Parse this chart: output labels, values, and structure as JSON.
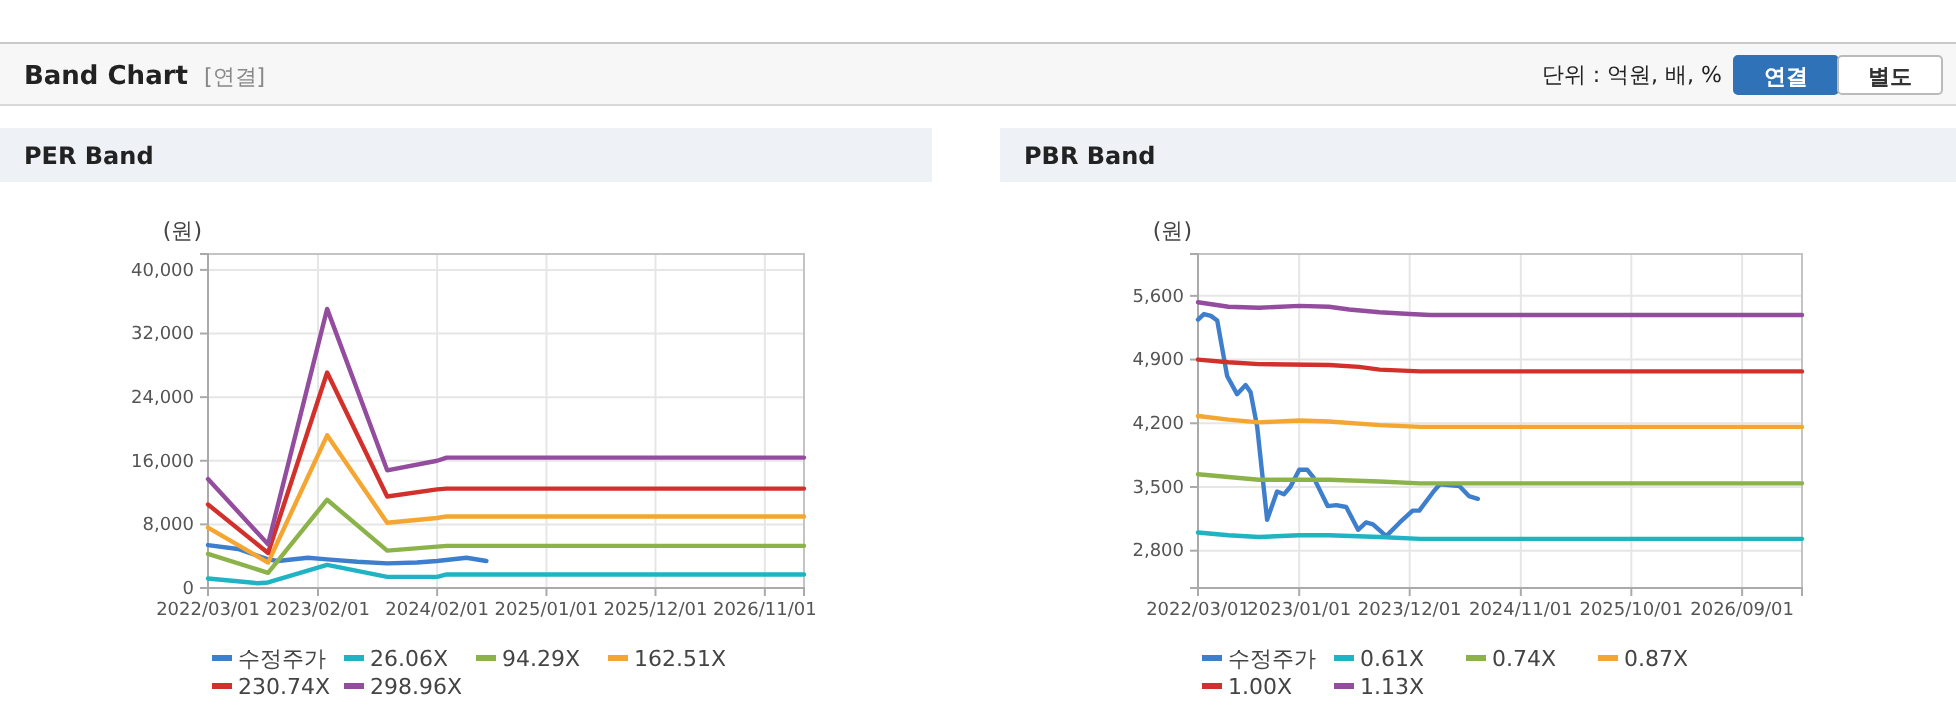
{
  "chart_data": [
    {
      "type": "other",
      "title": "Band Chart",
      "annotations": [
        "[연결]",
        "단위 : 억원, 배, %",
        "연결",
        "별도"
      ]
    },
    {
      "type": "line",
      "title": "PER Band",
      "ylabel": "(원)",
      "xlim": [
        "2022-03-01",
        "2027-03-01"
      ],
      "ylim": [
        0,
        42000
      ],
      "xticks": [
        {
          "value": "2022-03-01",
          "label": "2022/03/01"
        },
        {
          "value": "2023-02-01",
          "label": "2023/02/01"
        },
        {
          "value": "2024-02-01",
          "label": "2024/02/01"
        },
        {
          "value": "2025-01-01",
          "label": "2025/01/01"
        },
        {
          "value": "2025-12-01",
          "label": "2025/12/01"
        },
        {
          "value": "2026-11-01",
          "label": "2026/11/01"
        }
      ],
      "yticks": [
        {
          "value": 0,
          "label": "0"
        },
        {
          "value": 8000,
          "label": "8,000"
        },
        {
          "value": 16000,
          "label": "16,000"
        },
        {
          "value": 24000,
          "label": "24,000"
        },
        {
          "value": 32000,
          "label": "32,000"
        },
        {
          "value": 40000,
          "label": "40,000"
        }
      ],
      "grid": true,
      "legend": "bottom",
      "marker": "none",
      "line_style": "solid",
      "series": [
        {
          "name": "수정주가",
          "color": "#3d7fcc",
          "x": [
            "2022-03-01",
            "2022-06-01",
            "2022-09-01",
            "2022-10-01",
            "2023-01-01",
            "2023-03-01",
            "2023-06-01",
            "2023-09-01",
            "2023-12-01",
            "2024-02-01",
            "2024-05-01",
            "2024-07-01"
          ],
          "values": [
            5400,
            4900,
            3600,
            3400,
            3800,
            3600,
            3300,
            3100,
            3200,
            3400,
            3800,
            3400
          ]
        },
        {
          "name": "26.06X",
          "color": "#1fb3c4",
          "x": [
            "2022-03-01",
            "2022-08-01",
            "2022-09-01",
            "2023-03-01",
            "2023-09-01",
            "2024-02-01",
            "2024-03-01",
            "2027-03-01"
          ],
          "values": [
            1200,
            600,
            700,
            2900,
            1400,
            1400,
            1700,
            1700
          ]
        },
        {
          "name": "94.29X",
          "color": "#8cb34a",
          "x": [
            "2022-03-01",
            "2022-09-01",
            "2023-03-01",
            "2023-09-01",
            "2024-02-01",
            "2024-03-01",
            "2027-03-01"
          ],
          "values": [
            4300,
            1900,
            11100,
            4700,
            5200,
            5300,
            5300
          ]
        },
        {
          "name": "162.51X",
          "color": "#f5a630",
          "x": [
            "2022-03-01",
            "2022-09-01",
            "2023-03-01",
            "2023-09-01",
            "2024-02-01",
            "2024-03-01",
            "2027-03-01"
          ],
          "values": [
            7600,
            3200,
            19200,
            8200,
            8800,
            9000,
            9000
          ]
        },
        {
          "name": "230.74X",
          "color": "#d2302b",
          "x": [
            "2022-03-01",
            "2022-09-01",
            "2023-03-01",
            "2023-09-01",
            "2024-02-01",
            "2024-03-01",
            "2027-03-01"
          ],
          "values": [
            10500,
            4400,
            27100,
            11500,
            12400,
            12500,
            12500
          ]
        },
        {
          "name": "298.96X",
          "color": "#944c9e",
          "x": [
            "2022-03-01",
            "2022-09-01",
            "2023-03-01",
            "2023-09-01",
            "2024-02-01",
            "2024-03-01",
            "2027-03-01"
          ],
          "values": [
            13700,
            5500,
            35100,
            14800,
            16000,
            16400,
            16400
          ]
        }
      ]
    },
    {
      "type": "line",
      "title": "PBR Band",
      "ylabel": "(원)",
      "xlim": [
        "2022-03-01",
        "2027-03-01"
      ],
      "ylim": [
        2390,
        6060
      ],
      "xticks": [
        {
          "value": "2022-03-01",
          "label": "2022/03/01"
        },
        {
          "value": "2023-01-01",
          "label": "2023/01/01"
        },
        {
          "value": "2023-12-01",
          "label": "2023/12/01"
        },
        {
          "value": "2024-11-01",
          "label": "2024/11/01"
        },
        {
          "value": "2025-10-01",
          "label": "2025/10/01"
        },
        {
          "value": "2026-09-01",
          "label": "2026/09/01"
        }
      ],
      "yticks": [
        {
          "value": 2800,
          "label": "2,800"
        },
        {
          "value": 3500,
          "label": "3,500"
        },
        {
          "value": 4200,
          "label": "4,200"
        },
        {
          "value": 4900,
          "label": "4,900"
        },
        {
          "value": 5600,
          "label": "5,600"
        }
      ],
      "grid": true,
      "legend": "bottom",
      "marker": "none",
      "line_style": "solid",
      "series": [
        {
          "name": "수정주가",
          "color": "#3d7fcc",
          "x": [
            "2022-03-01",
            "2022-03-19",
            "2022-04-09",
            "2022-04-28",
            "2022-05-28",
            "2022-06-27",
            "2022-07-23",
            "2022-08-07",
            "2022-08-27",
            "2022-09-26",
            "2022-10-26",
            "2022-11-16",
            "2022-12-05",
            "2023-01-01",
            "2023-01-25",
            "2023-02-14",
            "2023-03-28",
            "2023-04-23",
            "2023-05-23",
            "2023-06-28",
            "2023-07-22",
            "2023-08-12",
            "2023-09-21",
            "2023-11-01",
            "2023-12-10",
            "2023-12-30",
            "2024-02-09",
            "2024-03-01",
            "2024-04-29",
            "2024-05-28",
            "2024-06-24"
          ],
          "values": [
            5340,
            5400,
            5380,
            5330,
            4720,
            4520,
            4620,
            4540,
            4160,
            3140,
            3450,
            3420,
            3500,
            3690,
            3690,
            3600,
            3290,
            3300,
            3280,
            3030,
            3110,
            3090,
            2960,
            3110,
            3240,
            3240,
            3440,
            3530,
            3510,
            3400,
            3370
          ]
        },
        {
          "name": "0.61X",
          "color": "#1fb3c4",
          "x": [
            "2022-03-01",
            "2022-06-01",
            "2022-09-01",
            "2023-01-01",
            "2023-04-01",
            "2023-09-01",
            "2024-01-01",
            "2027-03-01"
          ],
          "values": [
            3000,
            2970,
            2950,
            2970,
            2970,
            2950,
            2930,
            2930
          ]
        },
        {
          "name": "0.74X",
          "color": "#8cb34a",
          "x": [
            "2022-03-01",
            "2022-06-01",
            "2022-09-01",
            "2023-04-01",
            "2023-09-01",
            "2024-01-01",
            "2027-03-01"
          ],
          "values": [
            3640,
            3610,
            3580,
            3580,
            3560,
            3540,
            3540
          ]
        },
        {
          "name": "0.87X",
          "color": "#f5a630",
          "x": [
            "2022-03-01",
            "2022-06-01",
            "2022-09-01",
            "2023-01-01",
            "2023-04-01",
            "2023-09-01",
            "2024-01-01",
            "2027-03-01"
          ],
          "values": [
            4280,
            4240,
            4210,
            4230,
            4220,
            4180,
            4160,
            4160
          ]
        },
        {
          "name": "1.00X",
          "color": "#d2302b",
          "x": [
            "2022-03-01",
            "2022-06-01",
            "2022-09-01",
            "2023-04-01",
            "2023-07-01",
            "2023-09-01",
            "2024-01-01",
            "2027-03-01"
          ],
          "values": [
            4900,
            4870,
            4850,
            4840,
            4820,
            4790,
            4770,
            4770
          ]
        },
        {
          "name": "1.13X",
          "color": "#944c9e",
          "x": [
            "2022-03-01",
            "2022-06-01",
            "2022-09-01",
            "2023-01-01",
            "2023-04-01",
            "2023-06-01",
            "2023-09-01",
            "2023-12-01",
            "2024-02-01",
            "2027-03-01"
          ],
          "values": [
            5530,
            5480,
            5470,
            5490,
            5480,
            5450,
            5420,
            5400,
            5390,
            5390
          ]
        }
      ]
    }
  ]
}
